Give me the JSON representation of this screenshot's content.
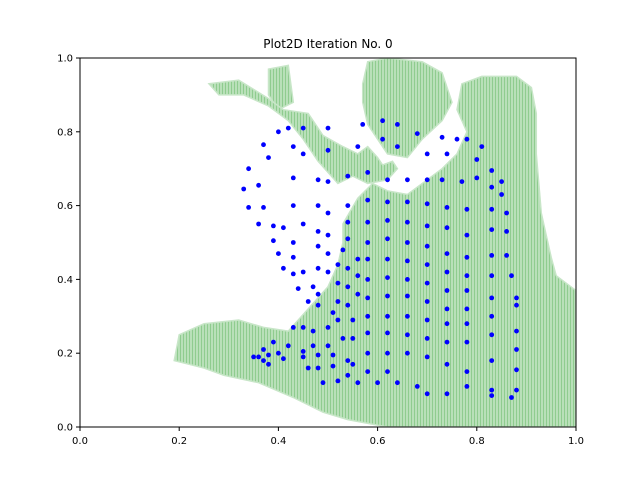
{
  "chart_data": {
    "type": "scatter",
    "title": "Plot2D Iteration No. 0",
    "xlim": [
      0,
      1
    ],
    "ylim": [
      0,
      1
    ],
    "xticks": [
      "0.0",
      "0.2",
      "0.4",
      "0.6",
      "0.8",
      "1.0"
    ],
    "yticks": [
      "0.0",
      "0.2",
      "0.4",
      "0.6",
      "0.8",
      "1.0"
    ],
    "grid": false,
    "colors": {
      "points": "#0000ff",
      "region_fill": "#a8d8a8",
      "region_grid": "#7cc27c"
    },
    "region_polygons": [
      [
        [
          0.38,
          0.97
        ],
        [
          0.42,
          0.98
        ],
        [
          0.43,
          0.88
        ],
        [
          0.4,
          0.86
        ],
        [
          0.38,
          0.9
        ]
      ],
      [
        [
          0.26,
          0.93
        ],
        [
          0.32,
          0.94
        ],
        [
          0.38,
          0.89
        ],
        [
          0.41,
          0.86
        ],
        [
          0.46,
          0.85
        ],
        [
          0.49,
          0.79
        ],
        [
          0.53,
          0.76
        ],
        [
          0.56,
          0.74
        ],
        [
          0.58,
          0.76
        ],
        [
          0.6,
          0.73
        ],
        [
          0.61,
          0.71
        ],
        [
          0.63,
          0.72
        ],
        [
          0.64,
          0.7
        ],
        [
          0.62,
          0.67
        ],
        [
          0.58,
          0.66
        ],
        [
          0.55,
          0.68
        ],
        [
          0.52,
          0.66
        ],
        [
          0.48,
          0.72
        ],
        [
          0.45,
          0.78
        ],
        [
          0.42,
          0.83
        ],
        [
          0.38,
          0.87
        ],
        [
          0.33,
          0.9
        ],
        [
          0.28,
          0.9
        ]
      ],
      [
        [
          0.58,
          0.99
        ],
        [
          0.62,
          1.0
        ],
        [
          0.69,
          0.99
        ],
        [
          0.73,
          0.96
        ],
        [
          0.75,
          0.88
        ],
        [
          0.73,
          0.83
        ],
        [
          0.69,
          0.78
        ],
        [
          0.66,
          0.73
        ],
        [
          0.62,
          0.74
        ],
        [
          0.6,
          0.78
        ],
        [
          0.58,
          0.82
        ],
        [
          0.57,
          0.88
        ],
        [
          0.57,
          0.93
        ]
      ],
      [
        [
          0.77,
          0.93
        ],
        [
          0.81,
          0.95
        ],
        [
          0.88,
          0.95
        ],
        [
          0.91,
          0.92
        ],
        [
          0.92,
          0.85
        ],
        [
          0.92,
          0.74
        ],
        [
          0.93,
          0.58
        ],
        [
          0.94,
          0.52
        ],
        [
          0.95,
          0.46
        ],
        [
          0.96,
          0.41
        ],
        [
          0.99,
          0.38
        ],
        [
          1.0,
          0.37
        ],
        [
          1.0,
          0.0
        ],
        [
          0.62,
          0.0
        ],
        [
          0.54,
          0.02
        ],
        [
          0.49,
          0.04
        ],
        [
          0.43,
          0.08
        ],
        [
          0.36,
          0.12
        ],
        [
          0.29,
          0.14
        ],
        [
          0.25,
          0.16
        ],
        [
          0.22,
          0.17
        ],
        [
          0.19,
          0.18
        ],
        [
          0.2,
          0.25
        ],
        [
          0.25,
          0.28
        ],
        [
          0.32,
          0.29
        ],
        [
          0.37,
          0.27
        ],
        [
          0.42,
          0.26
        ],
        [
          0.46,
          0.32
        ],
        [
          0.5,
          0.38
        ],
        [
          0.52,
          0.44
        ],
        [
          0.53,
          0.5
        ],
        [
          0.53,
          0.55
        ],
        [
          0.56,
          0.62
        ],
        [
          0.59,
          0.66
        ],
        [
          0.62,
          0.64
        ],
        [
          0.66,
          0.63
        ],
        [
          0.7,
          0.67
        ],
        [
          0.73,
          0.7
        ],
        [
          0.76,
          0.74
        ],
        [
          0.78,
          0.8
        ],
        [
          0.76,
          0.86
        ]
      ]
    ],
    "points": [
      [
        0.33,
        0.645
      ],
      [
        0.34,
        0.595
      ],
      [
        0.34,
        0.7
      ],
      [
        0.36,
        0.655
      ],
      [
        0.36,
        0.55
      ],
      [
        0.37,
        0.595
      ],
      [
        0.37,
        0.765
      ],
      [
        0.38,
        0.73
      ],
      [
        0.39,
        0.545
      ],
      [
        0.39,
        0.505
      ],
      [
        0.4,
        0.8
      ],
      [
        0.4,
        0.47
      ],
      [
        0.41,
        0.43
      ],
      [
        0.41,
        0.54
      ],
      [
        0.42,
        0.81
      ],
      [
        0.43,
        0.76
      ],
      [
        0.43,
        0.675
      ],
      [
        0.43,
        0.6
      ],
      [
        0.43,
        0.5
      ],
      [
        0.43,
        0.46
      ],
      [
        0.43,
        0.415
      ],
      [
        0.44,
        0.375
      ],
      [
        0.45,
        0.81
      ],
      [
        0.45,
        0.74
      ],
      [
        0.45,
        0.55
      ],
      [
        0.45,
        0.42
      ],
      [
        0.46,
        0.34
      ],
      [
        0.47,
        0.38
      ],
      [
        0.48,
        0.67
      ],
      [
        0.48,
        0.6
      ],
      [
        0.48,
        0.53
      ],
      [
        0.48,
        0.49
      ],
      [
        0.48,
        0.43
      ],
      [
        0.48,
        0.36
      ],
      [
        0.48,
        0.33
      ],
      [
        0.5,
        0.81
      ],
      [
        0.5,
        0.75
      ],
      [
        0.5,
        0.665
      ],
      [
        0.5,
        0.58
      ],
      [
        0.5,
        0.52
      ],
      [
        0.5,
        0.47
      ],
      [
        0.5,
        0.42
      ],
      [
        0.51,
        0.31
      ],
      [
        0.52,
        0.29
      ],
      [
        0.52,
        0.44
      ],
      [
        0.52,
        0.39
      ],
      [
        0.52,
        0.34
      ],
      [
        0.53,
        0.48
      ],
      [
        0.54,
        0.68
      ],
      [
        0.54,
        0.6
      ],
      [
        0.54,
        0.555
      ],
      [
        0.54,
        0.51
      ],
      [
        0.54,
        0.43
      ],
      [
        0.54,
        0.38
      ],
      [
        0.54,
        0.33
      ],
      [
        0.55,
        0.24
      ],
      [
        0.55,
        0.29
      ],
      [
        0.56,
        0.76
      ],
      [
        0.56,
        0.455
      ],
      [
        0.56,
        0.41
      ],
      [
        0.56,
        0.36
      ],
      [
        0.57,
        0.82
      ],
      [
        0.58,
        0.69
      ],
      [
        0.58,
        0.615
      ],
      [
        0.58,
        0.555
      ],
      [
        0.58,
        0.5
      ],
      [
        0.58,
        0.455
      ],
      [
        0.58,
        0.4
      ],
      [
        0.58,
        0.35
      ],
      [
        0.58,
        0.3
      ],
      [
        0.58,
        0.255
      ],
      [
        0.58,
        0.2
      ],
      [
        0.61,
        0.83
      ],
      [
        0.61,
        0.78
      ],
      [
        0.62,
        0.67
      ],
      [
        0.62,
        0.61
      ],
      [
        0.62,
        0.56
      ],
      [
        0.62,
        0.51
      ],
      [
        0.62,
        0.455
      ],
      [
        0.62,
        0.405
      ],
      [
        0.62,
        0.355
      ],
      [
        0.62,
        0.3
      ],
      [
        0.62,
        0.255
      ],
      [
        0.62,
        0.2
      ],
      [
        0.64,
        0.82
      ],
      [
        0.64,
        0.76
      ],
      [
        0.66,
        0.67
      ],
      [
        0.66,
        0.61
      ],
      [
        0.66,
        0.555
      ],
      [
        0.66,
        0.5
      ],
      [
        0.66,
        0.45
      ],
      [
        0.66,
        0.4
      ],
      [
        0.66,
        0.355
      ],
      [
        0.66,
        0.3
      ],
      [
        0.66,
        0.25
      ],
      [
        0.66,
        0.2
      ],
      [
        0.68,
        0.795
      ],
      [
        0.7,
        0.74
      ],
      [
        0.7,
        0.67
      ],
      [
        0.7,
        0.605
      ],
      [
        0.7,
        0.545
      ],
      [
        0.7,
        0.49
      ],
      [
        0.7,
        0.44
      ],
      [
        0.7,
        0.39
      ],
      [
        0.7,
        0.34
      ],
      [
        0.7,
        0.29
      ],
      [
        0.7,
        0.24
      ],
      [
        0.7,
        0.19
      ],
      [
        0.73,
        0.785
      ],
      [
        0.74,
        0.74
      ],
      [
        0.73,
        0.67
      ],
      [
        0.74,
        0.595
      ],
      [
        0.74,
        0.54
      ],
      [
        0.74,
        0.47
      ],
      [
        0.74,
        0.42
      ],
      [
        0.74,
        0.37
      ],
      [
        0.74,
        0.32
      ],
      [
        0.74,
        0.28
      ],
      [
        0.74,
        0.23
      ],
      [
        0.74,
        0.17
      ],
      [
        0.76,
        0.78
      ],
      [
        0.77,
        0.665
      ],
      [
        0.78,
        0.59
      ],
      [
        0.78,
        0.52
      ],
      [
        0.78,
        0.46
      ],
      [
        0.78,
        0.41
      ],
      [
        0.78,
        0.37
      ],
      [
        0.78,
        0.32
      ],
      [
        0.78,
        0.28
      ],
      [
        0.78,
        0.23
      ],
      [
        0.78,
        0.15
      ],
      [
        0.78,
        0.78
      ],
      [
        0.8,
        0.725
      ],
      [
        0.8,
        0.675
      ],
      [
        0.81,
        0.76
      ],
      [
        0.83,
        0.695
      ],
      [
        0.83,
        0.65
      ],
      [
        0.83,
        0.59
      ],
      [
        0.83,
        0.535
      ],
      [
        0.83,
        0.465
      ],
      [
        0.83,
        0.41
      ],
      [
        0.83,
        0.35
      ],
      [
        0.83,
        0.3
      ],
      [
        0.83,
        0.25
      ],
      [
        0.83,
        0.18
      ],
      [
        0.83,
        0.1
      ],
      [
        0.85,
        0.665
      ],
      [
        0.85,
        0.63
      ],
      [
        0.86,
        0.58
      ],
      [
        0.86,
        0.53
      ],
      [
        0.86,
        0.465
      ],
      [
        0.87,
        0.41
      ],
      [
        0.88,
        0.35
      ],
      [
        0.88,
        0.33
      ],
      [
        0.88,
        0.26
      ],
      [
        0.88,
        0.21
      ],
      [
        0.88,
        0.155
      ],
      [
        0.88,
        0.1
      ],
      [
        0.87,
        0.08
      ],
      [
        0.83,
        0.085
      ],
      [
        0.35,
        0.19
      ],
      [
        0.36,
        0.19
      ],
      [
        0.37,
        0.18
      ],
      [
        0.37,
        0.21
      ],
      [
        0.38,
        0.195
      ],
      [
        0.38,
        0.17
      ],
      [
        0.39,
        0.23
      ],
      [
        0.4,
        0.2
      ],
      [
        0.41,
        0.185
      ],
      [
        0.42,
        0.22
      ],
      [
        0.43,
        0.27
      ],
      [
        0.45,
        0.27
      ],
      [
        0.45,
        0.205
      ],
      [
        0.45,
        0.19
      ],
      [
        0.46,
        0.16
      ],
      [
        0.47,
        0.26
      ],
      [
        0.47,
        0.22
      ],
      [
        0.48,
        0.195
      ],
      [
        0.48,
        0.16
      ],
      [
        0.49,
        0.12
      ],
      [
        0.5,
        0.27
      ],
      [
        0.5,
        0.22
      ],
      [
        0.51,
        0.195
      ],
      [
        0.51,
        0.165
      ],
      [
        0.52,
        0.125
      ],
      [
        0.53,
        0.24
      ],
      [
        0.54,
        0.18
      ],
      [
        0.54,
        0.14
      ],
      [
        0.55,
        0.17
      ],
      [
        0.56,
        0.12
      ],
      [
        0.58,
        0.15
      ],
      [
        0.6,
        0.12
      ],
      [
        0.62,
        0.15
      ],
      [
        0.64,
        0.12
      ],
      [
        0.68,
        0.11
      ],
      [
        0.7,
        0.09
      ],
      [
        0.74,
        0.09
      ],
      [
        0.78,
        0.11
      ]
    ]
  }
}
